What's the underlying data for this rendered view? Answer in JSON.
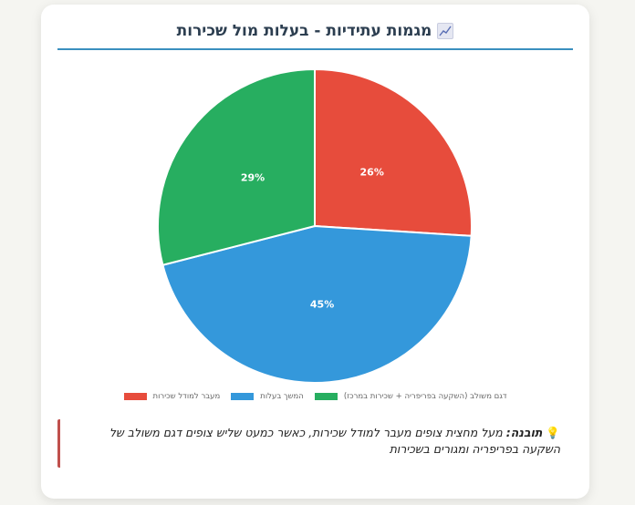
{
  "card": {
    "title": "מגמות עתידיות - בעלות מול שכירות",
    "title_icon": "chart-increasing-icon"
  },
  "chart_data": {
    "type": "pie",
    "title": "מגמות עתידיות - בעלות מול שכירות",
    "categories": [
      "מעבר למודל שכירות",
      "המשך בעלות",
      "דגם משולב (השקעה בפריפריה + שכירות במרכז)"
    ],
    "values": [
      26,
      45,
      29
    ],
    "value_labels": [
      "26%",
      "45%",
      "29%"
    ],
    "colors": [
      "#e74c3c",
      "#3498db",
      "#27ae60"
    ],
    "start_angle": "top, clockwise",
    "legend_position": "bottom"
  },
  "legend": {
    "items": [
      {
        "label": "מעבר למודל שכירות",
        "color": "#e74c3c"
      },
      {
        "label": "המשך בעלות",
        "color": "#3498db"
      },
      {
        "label": "דגם משולב (השקעה בפריפריה + שכירות במרכז)",
        "color": "#27ae60"
      }
    ]
  },
  "insight": {
    "icon": "lightbulb-icon",
    "label": "תובנה:",
    "text": " מעל מחצית צופים מעבר למודל שכירות, כאשר כמעט שליש צופים דגם משולב של השקעה בפריפריה ומגורים בשכירות",
    "accent_color": "#c0504d"
  },
  "colors": {
    "title": "#2c3e50",
    "title_underline": "#3a8fbf",
    "background": "#f5f5f1",
    "card": "#ffffff"
  }
}
